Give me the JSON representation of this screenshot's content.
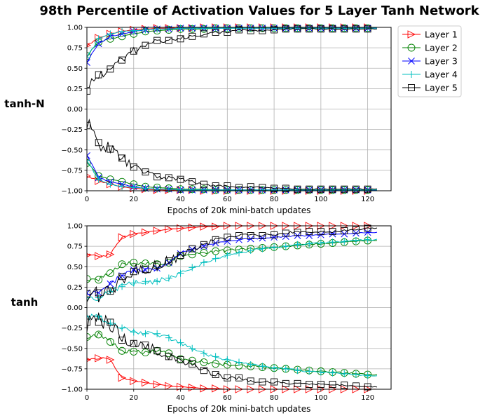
{
  "figure": {
    "title": "98th Percentile of Activation Values for 5 Layer Tanh Network"
  },
  "colors": {
    "Layer 1": "#ff0000",
    "Layer 2": "#008000",
    "Layer 3": "#0000ff",
    "Layer 4": "#00bfbf",
    "Layer 5": "#000000"
  },
  "markers": {
    "Layer 1": "triangle-right",
    "Layer 2": "circle",
    "Layer 3": "x",
    "Layer 4": "plus",
    "Layer 5": "square"
  },
  "legend": {
    "placement": "outside-right-top",
    "entries": [
      "Layer 1",
      "Layer 2",
      "Layer 3",
      "Layer 4",
      "Layer 5"
    ]
  },
  "chart_data": [
    {
      "type": "line",
      "row_label": "tanh-N",
      "xlabel": "Epochs of 20k mini-batch updates",
      "ylabel": "",
      "xlim": [
        0,
        130
      ],
      "ylim": [
        -1.0,
        1.0
      ],
      "xticks": [
        0,
        20,
        40,
        60,
        80,
        100,
        120
      ],
      "yticks": [
        -1.0,
        -0.75,
        -0.5,
        -0.25,
        0.0,
        0.25,
        0.5,
        0.75,
        1.0
      ],
      "xtick_labels": [
        "0",
        "20",
        "40",
        "60",
        "80",
        "100",
        "120"
      ],
      "ytick_labels": [
        "−1.00",
        "−0.75",
        "−0.50",
        "−0.25",
        "0.00",
        "0.25",
        "0.50",
        "0.75",
        "1.00"
      ],
      "grid": true,
      "marker_x": [
        0,
        5,
        10,
        15,
        20,
        25,
        30,
        35,
        40,
        45,
        50,
        55,
        60,
        65,
        70,
        75,
        80,
        85,
        90,
        95,
        100,
        105,
        110,
        115,
        120
      ],
      "series": [
        {
          "name": "Layer 1",
          "upper": [
            0.78,
            0.87,
            0.92,
            0.95,
            0.97,
            0.98,
            0.99,
            0.99,
            0.99,
            0.99,
            1.0,
            1.0,
            1.0,
            1.0,
            1.0,
            1.0,
            1.0,
            1.0,
            1.0,
            1.0,
            1.0,
            1.0,
            1.0,
            1.0,
            1.0
          ],
          "lower": [
            -0.82,
            -0.88,
            -0.92,
            -0.95,
            -0.97,
            -0.98,
            -0.99,
            -0.99,
            -0.99,
            -0.99,
            -1.0,
            -1.0,
            -1.0,
            -1.0,
            -1.0,
            -1.0,
            -1.0,
            -1.0,
            -1.0,
            -1.0,
            -1.0,
            -1.0,
            -1.0,
            -1.0,
            -1.0
          ]
        },
        {
          "name": "Layer 2",
          "upper": [
            0.65,
            0.82,
            0.86,
            0.89,
            0.92,
            0.95,
            0.96,
            0.97,
            0.98,
            0.98,
            0.98,
            0.99,
            0.99,
            0.99,
            0.99,
            0.99,
            0.99,
            0.99,
            0.99,
            0.99,
            0.99,
            0.99,
            0.99,
            0.99,
            0.99
          ],
          "lower": [
            -0.66,
            -0.82,
            -0.86,
            -0.89,
            -0.92,
            -0.95,
            -0.96,
            -0.97,
            -0.98,
            -0.98,
            -0.98,
            -0.99,
            -0.99,
            -0.99,
            -0.99,
            -0.99,
            -0.99,
            -0.99,
            -0.99,
            -0.99,
            -0.99,
            -0.99,
            -0.99,
            -0.99,
            -0.99
          ]
        },
        {
          "name": "Layer 3",
          "upper": [
            0.57,
            0.8,
            0.89,
            0.92,
            0.95,
            0.97,
            0.98,
            0.98,
            0.99,
            0.99,
            0.99,
            0.99,
            0.99,
            0.99,
            0.99,
            0.99,
            0.99,
            0.99,
            0.99,
            0.99,
            0.99,
            0.99,
            0.99,
            0.99,
            0.99
          ],
          "lower": [
            -0.57,
            -0.84,
            -0.89,
            -0.92,
            -0.95,
            -0.97,
            -0.98,
            -0.98,
            -0.99,
            -0.99,
            -0.99,
            -0.99,
            -0.99,
            -0.99,
            -0.99,
            -0.99,
            -0.99,
            -0.99,
            -0.99,
            -0.99,
            -0.99,
            -0.99,
            -0.99,
            -0.99,
            -0.99
          ]
        },
        {
          "name": "Layer 4",
          "upper": [
            0.63,
            0.86,
            0.92,
            0.95,
            0.96,
            0.97,
            0.98,
            0.98,
            0.99,
            0.99,
            0.99,
            0.99,
            0.99,
            0.99,
            0.99,
            0.99,
            0.99,
            0.99,
            0.99,
            0.99,
            0.99,
            0.99,
            0.99,
            0.99,
            0.99
          ],
          "lower": [
            -0.63,
            -0.86,
            -0.92,
            -0.95,
            -0.96,
            -0.97,
            -0.98,
            -0.98,
            -0.99,
            -0.99,
            -0.99,
            -0.99,
            -0.99,
            -0.99,
            -0.99,
            -0.99,
            -0.99,
            -0.99,
            -0.99,
            -0.99,
            -0.99,
            -0.99,
            -0.99,
            -0.99,
            -0.99
          ]
        },
        {
          "name": "Layer 5",
          "upper": [
            0.22,
            0.42,
            0.49,
            0.6,
            0.71,
            0.78,
            0.84,
            0.84,
            0.86,
            0.89,
            0.92,
            0.94,
            0.94,
            0.97,
            0.96,
            0.96,
            0.97,
            0.98,
            0.98,
            0.98,
            0.98,
            0.98,
            0.98,
            0.98,
            0.98
          ],
          "lower": [
            -0.2,
            -0.41,
            -0.49,
            -0.6,
            -0.71,
            -0.77,
            -0.83,
            -0.84,
            -0.86,
            -0.89,
            -0.92,
            -0.94,
            -0.94,
            -0.96,
            -0.95,
            -0.96,
            -0.97,
            -0.97,
            -0.98,
            -0.98,
            -0.98,
            -0.98,
            -0.98,
            -0.98,
            -0.98
          ]
        }
      ]
    },
    {
      "type": "line",
      "row_label": "tanh",
      "xlabel": "Epochs of 20k mini-batch updates",
      "ylabel": "",
      "xlim": [
        0,
        130
      ],
      "ylim": [
        -1.0,
        1.0
      ],
      "xticks": [
        0,
        20,
        40,
        60,
        80,
        100,
        120
      ],
      "yticks": [
        -1.0,
        -0.75,
        -0.5,
        -0.25,
        0.0,
        0.25,
        0.5,
        0.75,
        1.0
      ],
      "xtick_labels": [
        "0",
        "20",
        "40",
        "60",
        "80",
        "100",
        "120"
      ],
      "ytick_labels": [
        "−1.00",
        "−0.75",
        "−0.50",
        "−0.25",
        "0.00",
        "0.25",
        "0.50",
        "0.75",
        "1.00"
      ],
      "grid": true,
      "marker_x": [
        0,
        5,
        10,
        15,
        20,
        25,
        30,
        35,
        40,
        45,
        50,
        55,
        60,
        65,
        70,
        75,
        80,
        85,
        90,
        95,
        100,
        105,
        110,
        115,
        120
      ],
      "series": [
        {
          "name": "Layer 1",
          "upper": [
            0.64,
            0.63,
            0.65,
            0.86,
            0.9,
            0.92,
            0.94,
            0.96,
            0.97,
            0.98,
            0.99,
            0.99,
            1.0,
            1.0,
            1.0,
            1.0,
            1.0,
            1.0,
            1.0,
            1.0,
            1.0,
            1.0,
            1.0,
            1.0,
            1.0
          ],
          "lower": [
            -0.64,
            -0.62,
            -0.64,
            -0.86,
            -0.9,
            -0.92,
            -0.94,
            -0.96,
            -0.97,
            -0.98,
            -0.99,
            -0.99,
            -1.0,
            -1.0,
            -1.0,
            -1.0,
            -1.0,
            -1.0,
            -1.0,
            -1.0,
            -1.0,
            -1.0,
            -1.0,
            -1.0,
            -1.0
          ]
        },
        {
          "name": "Layer 2",
          "upper": [
            0.35,
            0.34,
            0.42,
            0.53,
            0.55,
            0.54,
            0.53,
            0.55,
            0.63,
            0.65,
            0.67,
            0.69,
            0.7,
            0.71,
            0.72,
            0.73,
            0.74,
            0.75,
            0.76,
            0.77,
            0.78,
            0.79,
            0.8,
            0.81,
            0.82
          ],
          "lower": [
            -0.36,
            -0.33,
            -0.42,
            -0.53,
            -0.54,
            -0.55,
            -0.53,
            -0.56,
            -0.63,
            -0.65,
            -0.67,
            -0.69,
            -0.7,
            -0.71,
            -0.72,
            -0.73,
            -0.74,
            -0.75,
            -0.76,
            -0.77,
            -0.78,
            -0.79,
            -0.8,
            -0.81,
            -0.82
          ]
        },
        {
          "name": "Layer 3",
          "upper": [
            0.18,
            0.18,
            0.29,
            0.39,
            0.46,
            0.46,
            0.48,
            0.55,
            0.66,
            0.71,
            0.75,
            0.79,
            0.81,
            0.83,
            0.84,
            0.85,
            0.86,
            0.87,
            0.88,
            0.88,
            0.89,
            0.9,
            0.9,
            0.91,
            0.92
          ]
        },
        {
          "name": "Layer 4",
          "upper": [
            0.12,
            0.12,
            0.2,
            0.26,
            0.3,
            0.32,
            0.32,
            0.36,
            0.42,
            0.49,
            0.55,
            0.6,
            0.64,
            0.67,
            0.7,
            0.72,
            0.74,
            0.75,
            0.77,
            0.78,
            0.79,
            0.8,
            0.81,
            0.82,
            0.83
          ],
          "lower": [
            -0.11,
            -0.11,
            -0.19,
            -0.25,
            -0.3,
            -0.32,
            -0.32,
            -0.37,
            -0.43,
            -0.5,
            -0.56,
            -0.6,
            -0.64,
            -0.67,
            -0.7,
            -0.72,
            -0.74,
            -0.75,
            -0.77,
            -0.78,
            -0.79,
            -0.8,
            -0.81,
            -0.82,
            -0.83
          ]
        },
        {
          "name": "Layer 5",
          "upper": [
            0.17,
            0.18,
            0.2,
            0.38,
            0.44,
            0.47,
            0.52,
            0.57,
            0.64,
            0.72,
            0.77,
            0.83,
            0.86,
            0.88,
            0.88,
            0.88,
            0.89,
            0.91,
            0.92,
            0.93,
            0.93,
            0.93,
            0.94,
            0.95,
            0.97
          ],
          "lower": [
            -0.18,
            -0.18,
            -0.18,
            -0.4,
            -0.44,
            -0.46,
            -0.53,
            -0.6,
            -0.64,
            -0.69,
            -0.77,
            -0.82,
            -0.86,
            -0.86,
            -0.9,
            -0.91,
            -0.91,
            -0.93,
            -0.93,
            -0.94,
            -0.94,
            -0.94,
            -0.95,
            -0.96,
            -0.97
          ]
        }
      ]
    }
  ]
}
